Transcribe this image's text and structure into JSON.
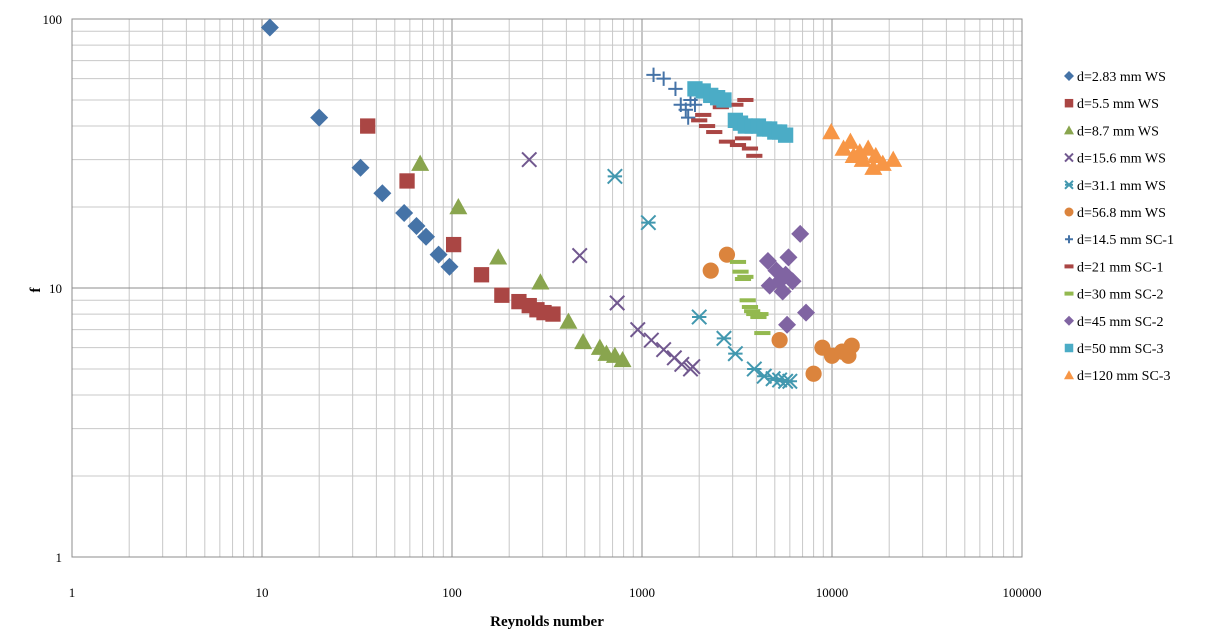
{
  "chart_data": {
    "type": "scatter",
    "xlabel": "Reynolds number",
    "ylabel": "f",
    "x_scale": "log",
    "y_scale": "log",
    "xlim": [
      1,
      100000
    ],
    "ylim": [
      1,
      100
    ],
    "x_ticks": [
      "1",
      "10",
      "100",
      "1000",
      "10000",
      "100000"
    ],
    "y_ticks": [
      "1",
      "10",
      "100"
    ],
    "grid": true,
    "legend_position": "right",
    "series": [
      {
        "name": "d=2.83 mm WS",
        "marker": "diamond",
        "color": "#4573A7",
        "points": [
          [
            11,
            93
          ],
          [
            20,
            43
          ],
          [
            33,
            28
          ],
          [
            43,
            22.5
          ],
          [
            56,
            19
          ],
          [
            65,
            17
          ],
          [
            73,
            15.5
          ],
          [
            85,
            13.3
          ],
          [
            97,
            12
          ]
        ]
      },
      {
        "name": "d=5.5 mm WS",
        "marker": "square",
        "color": "#AA4644",
        "points": [
          [
            36,
            40
          ],
          [
            58,
            25
          ],
          [
            102,
            14.5
          ],
          [
            143,
            11.2
          ],
          [
            183,
            9.4
          ],
          [
            225,
            8.9
          ],
          [
            255,
            8.6
          ],
          [
            280,
            8.3
          ],
          [
            305,
            8.1
          ],
          [
            340,
            8.0
          ]
        ]
      },
      {
        "name": "d=8.7 mm WS",
        "marker": "triangle",
        "color": "#89A54E",
        "points": [
          [
            68,
            29
          ],
          [
            108,
            20
          ],
          [
            175,
            13
          ],
          [
            292,
            10.5
          ],
          [
            410,
            7.5
          ],
          [
            490,
            6.3
          ],
          [
            600,
            6.0
          ],
          [
            650,
            5.7
          ],
          [
            720,
            5.6
          ],
          [
            790,
            5.4
          ]
        ]
      },
      {
        "name": "d=15.6 mm WS",
        "marker": "x",
        "color": "#71588F",
        "points": [
          [
            255,
            30
          ],
          [
            470,
            13.2
          ],
          [
            740,
            8.8
          ],
          [
            950,
            7.0
          ],
          [
            1120,
            6.4
          ],
          [
            1300,
            5.9
          ],
          [
            1480,
            5.5
          ],
          [
            1620,
            5.2
          ],
          [
            1800,
            5.0
          ],
          [
            1850,
            5.1
          ]
        ]
      },
      {
        "name": "d=31.1 mm WS",
        "marker": "asterisk",
        "color": "#4298AF",
        "points": [
          [
            720,
            26
          ],
          [
            1080,
            17.5
          ],
          [
            2000,
            7.8
          ],
          [
            2700,
            6.5
          ],
          [
            3100,
            5.7
          ],
          [
            3900,
            5.0
          ],
          [
            4400,
            4.7
          ],
          [
            4900,
            4.6
          ],
          [
            5300,
            4.55
          ],
          [
            5700,
            4.5
          ],
          [
            6000,
            4.5
          ]
        ]
      },
      {
        "name": "d=56.8 mm WS",
        "marker": "circle",
        "color": "#DB843D",
        "points": [
          [
            2300,
            11.6
          ],
          [
            2800,
            13.3
          ],
          [
            5300,
            6.4
          ],
          [
            8000,
            4.8
          ],
          [
            8900,
            6.0
          ],
          [
            10000,
            5.6
          ],
          [
            11300,
            5.8
          ],
          [
            12200,
            5.6
          ],
          [
            12700,
            6.1
          ]
        ]
      },
      {
        "name": "d=14.5 mm SC-1",
        "marker": "plus",
        "color": "#4573A7",
        "points": [
          [
            1150,
            62
          ],
          [
            1300,
            60
          ],
          [
            1500,
            55
          ],
          [
            1600,
            48
          ],
          [
            1700,
            46
          ],
          [
            1750,
            43
          ],
          [
            1800,
            50
          ],
          [
            1900,
            48
          ]
        ]
      },
      {
        "name": "d=21 mm SC-1",
        "marker": "dash",
        "color": "#AA4644",
        "points": [
          [
            2000,
            42
          ],
          [
            2100,
            44
          ],
          [
            2200,
            40
          ],
          [
            2400,
            38
          ],
          [
            2600,
            47
          ],
          [
            2800,
            35
          ],
          [
            3100,
            48
          ],
          [
            3200,
            34
          ],
          [
            3400,
            36
          ],
          [
            3500,
            50
          ],
          [
            3700,
            33
          ],
          [
            3900,
            31
          ]
        ]
      },
      {
        "name": "d=30 mm SC-2",
        "marker": "dash",
        "color": "#93B94F",
        "points": [
          [
            3200,
            12.5
          ],
          [
            3300,
            11.5
          ],
          [
            3400,
            10.8
          ],
          [
            3500,
            11.0
          ],
          [
            3600,
            9.0
          ],
          [
            3700,
            8.5
          ],
          [
            3800,
            8.2
          ],
          [
            3900,
            8.0
          ],
          [
            4100,
            7.8
          ],
          [
            4300,
            6.8
          ],
          [
            4200,
            8.0
          ]
        ]
      },
      {
        "name": "d=45 mm SC-2",
        "marker": "diamond",
        "color": "#8064A2",
        "points": [
          [
            4600,
            12.6
          ],
          [
            4700,
            10.2
          ],
          [
            5100,
            11.6
          ],
          [
            5300,
            10.6
          ],
          [
            5500,
            9.7
          ],
          [
            5700,
            11.2
          ],
          [
            5900,
            13.0
          ],
          [
            6200,
            10.6
          ],
          [
            6800,
            15.9
          ],
          [
            7300,
            8.1
          ],
          [
            5800,
            7.3
          ]
        ]
      },
      {
        "name": "d=50 mm SC-3",
        "marker": "square",
        "color": "#4BACC6",
        "points": [
          [
            1900,
            55
          ],
          [
            2100,
            54
          ],
          [
            2300,
            52
          ],
          [
            2500,
            51
          ],
          [
            2700,
            50
          ],
          [
            3100,
            42
          ],
          [
            3300,
            41
          ],
          [
            3500,
            40
          ],
          [
            3800,
            40
          ],
          [
            4100,
            40
          ],
          [
            4400,
            39
          ],
          [
            4700,
            39
          ],
          [
            5000,
            38
          ],
          [
            5300,
            38
          ],
          [
            5700,
            37
          ]
        ]
      },
      {
        "name": "d=120 mm SC-3",
        "marker": "triangle",
        "color": "#F79646",
        "points": [
          [
            9900,
            38
          ],
          [
            11500,
            33
          ],
          [
            12500,
            35
          ],
          [
            13000,
            31
          ],
          [
            14000,
            32
          ],
          [
            14500,
            30
          ],
          [
            15500,
            33
          ],
          [
            16500,
            28
          ],
          [
            17000,
            31
          ],
          [
            18500,
            29
          ],
          [
            21000,
            30
          ]
        ]
      }
    ]
  }
}
